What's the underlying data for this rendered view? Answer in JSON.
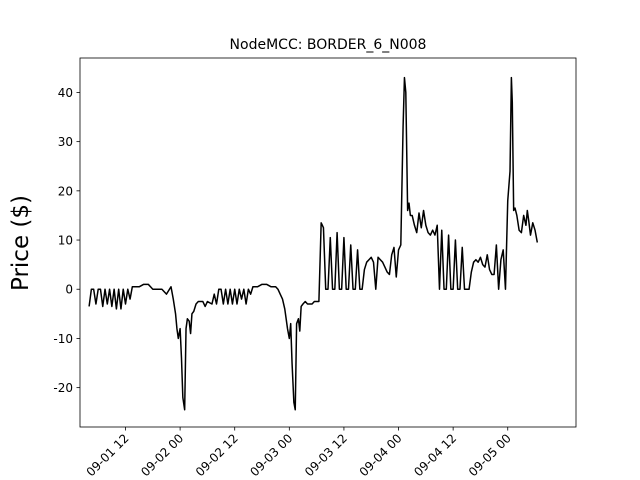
{
  "chart_data": {
    "type": "line",
    "title": "NodeMCC: BORDER_6_N008",
    "xlabel": "",
    "ylabel": "Price ($)",
    "x_unit": "hours",
    "xlim": [
      "09-01 02:00",
      "09-05 15:00"
    ],
    "ylim": [
      -28,
      47
    ],
    "yticks": [
      -20,
      -10,
      0,
      10,
      20,
      30,
      40
    ],
    "xticks": [
      {
        "label": "09-01 12",
        "hour": 12
      },
      {
        "label": "09-02 00",
        "hour": 24
      },
      {
        "label": "09-02 12",
        "hour": 36
      },
      {
        "label": "09-03 00",
        "hour": 48
      },
      {
        "label": "09-03 12",
        "hour": 60
      },
      {
        "label": "09-04 00",
        "hour": 72
      },
      {
        "label": "09-04 12",
        "hour": 84
      },
      {
        "label": "09-05 00",
        "hour": 96
      }
    ],
    "grid": false,
    "legend": "none",
    "series": [
      {
        "color": "#000000",
        "points": [
          [
            4.0,
            -3.5
          ],
          [
            4.5,
            0.0
          ],
          [
            5.0,
            0.0
          ],
          [
            5.5,
            -3.0
          ],
          [
            6.0,
            0.0
          ],
          [
            6.5,
            0.0
          ],
          [
            7.0,
            -3.5
          ],
          [
            7.5,
            0.0
          ],
          [
            8.0,
            -3.0
          ],
          [
            8.5,
            0.0
          ],
          [
            9.0,
            -3.5
          ],
          [
            9.5,
            0.0
          ],
          [
            10.0,
            -4.0
          ],
          [
            10.5,
            0.0
          ],
          [
            11.0,
            -4.0
          ],
          [
            11.5,
            0.0
          ],
          [
            12.0,
            -3.0
          ],
          [
            12.5,
            0.0
          ],
          [
            13.0,
            -2.0
          ],
          [
            13.5,
            0.5
          ],
          [
            14.0,
            0.5
          ],
          [
            15.0,
            0.5
          ],
          [
            16.0,
            1.0
          ],
          [
            17.0,
            1.0
          ],
          [
            17.5,
            0.5
          ],
          [
            18.0,
            0.0
          ],
          [
            19.0,
            0.0
          ],
          [
            20.0,
            0.0
          ],
          [
            21.0,
            -1.0
          ],
          [
            22.0,
            0.5
          ],
          [
            22.5,
            -2.0
          ],
          [
            23.0,
            -5.0
          ],
          [
            23.3,
            -8.0
          ],
          [
            23.6,
            -10.0
          ],
          [
            24.0,
            -8.0
          ],
          [
            24.3,
            -14.0
          ],
          [
            24.6,
            -22.0
          ],
          [
            25.0,
            -24.5
          ],
          [
            25.3,
            -8.0
          ],
          [
            25.6,
            -6.0
          ],
          [
            26.0,
            -6.5
          ],
          [
            26.3,
            -9.0
          ],
          [
            26.6,
            -5.0
          ],
          [
            27.0,
            -4.5
          ],
          [
            27.5,
            -3.0
          ],
          [
            28.0,
            -2.5
          ],
          [
            29.0,
            -2.5
          ],
          [
            29.5,
            -3.5
          ],
          [
            30.0,
            -2.5
          ],
          [
            31.0,
            -3.0
          ],
          [
            31.5,
            -1.0
          ],
          [
            32.0,
            -3.0
          ],
          [
            32.5,
            0.0
          ],
          [
            33.0,
            0.0
          ],
          [
            33.5,
            -3.0
          ],
          [
            34.0,
            0.0
          ],
          [
            34.5,
            -3.0
          ],
          [
            35.0,
            0.0
          ],
          [
            35.5,
            -3.0
          ],
          [
            36.0,
            0.0
          ],
          [
            36.5,
            -3.0
          ],
          [
            37.0,
            0.0
          ],
          [
            37.5,
            -2.0
          ],
          [
            38.0,
            0.0
          ],
          [
            38.5,
            -3.0
          ],
          [
            39.0,
            0.0
          ],
          [
            39.5,
            -1.0
          ],
          [
            40.0,
            0.5
          ],
          [
            41.0,
            0.5
          ],
          [
            42.0,
            1.0
          ],
          [
            43.0,
            1.0
          ],
          [
            44.0,
            0.5
          ],
          [
            45.0,
            0.5
          ],
          [
            45.5,
            0.0
          ],
          [
            46.0,
            -1.0
          ],
          [
            46.5,
            -2.0
          ],
          [
            47.0,
            -4.0
          ],
          [
            47.3,
            -6.0
          ],
          [
            47.6,
            -8.0
          ],
          [
            48.0,
            -10.0
          ],
          [
            48.3,
            -7.0
          ],
          [
            48.6,
            -15.0
          ],
          [
            49.0,
            -23.0
          ],
          [
            49.3,
            -24.5
          ],
          [
            49.6,
            -7.0
          ],
          [
            50.0,
            -6.0
          ],
          [
            50.3,
            -8.5
          ],
          [
            50.6,
            -3.5
          ],
          [
            51.0,
            -3.0
          ],
          [
            51.5,
            -2.5
          ],
          [
            52.0,
            -3.0
          ],
          [
            53.0,
            -3.0
          ],
          [
            53.5,
            -2.5
          ],
          [
            54.0,
            -2.5
          ],
          [
            54.5,
            -2.5
          ],
          [
            55.0,
            13.5
          ],
          [
            55.5,
            12.5
          ],
          [
            56.0,
            0.0
          ],
          [
            56.5,
            0.0
          ],
          [
            57.0,
            10.5
          ],
          [
            57.5,
            0.0
          ],
          [
            58.0,
            0.0
          ],
          [
            58.5,
            11.5
          ],
          [
            59.0,
            0.0
          ],
          [
            59.5,
            0.0
          ],
          [
            60.0,
            10.5
          ],
          [
            60.5,
            0.0
          ],
          [
            61.0,
            0.0
          ],
          [
            61.5,
            9.0
          ],
          [
            62.0,
            0.0
          ],
          [
            62.5,
            0.0
          ],
          [
            63.0,
            8.0
          ],
          [
            63.5,
            0.0
          ],
          [
            64.0,
            0.0
          ],
          [
            64.5,
            4.0
          ],
          [
            65.0,
            5.5
          ],
          [
            65.5,
            6.0
          ],
          [
            66.0,
            6.5
          ],
          [
            66.5,
            5.5
          ],
          [
            67.0,
            0.0
          ],
          [
            67.5,
            6.5
          ],
          [
            68.0,
            6.0
          ],
          [
            68.5,
            5.5
          ],
          [
            69.0,
            4.5
          ],
          [
            69.5,
            3.5
          ],
          [
            70.0,
            3.0
          ],
          [
            70.5,
            7.0
          ],
          [
            71.0,
            8.5
          ],
          [
            71.5,
            2.5
          ],
          [
            72.0,
            8.0
          ],
          [
            72.5,
            9.0
          ],
          [
            73.0,
            33.0
          ],
          [
            73.3,
            43.0
          ],
          [
            73.6,
            40.0
          ],
          [
            74.0,
            16.0
          ],
          [
            74.3,
            17.5
          ],
          [
            74.6,
            15.0
          ],
          [
            75.0,
            15.0
          ],
          [
            75.5,
            13.0
          ],
          [
            76.0,
            11.5
          ],
          [
            76.5,
            15.5
          ],
          [
            77.0,
            12.5
          ],
          [
            77.5,
            16.0
          ],
          [
            78.0,
            13.0
          ],
          [
            78.5,
            11.5
          ],
          [
            79.0,
            11.0
          ],
          [
            79.5,
            12.0
          ],
          [
            80.0,
            11.0
          ],
          [
            80.5,
            13.0
          ],
          [
            81.0,
            0.0
          ],
          [
            81.5,
            12.0
          ],
          [
            82.0,
            0.0
          ],
          [
            82.5,
            0.0
          ],
          [
            83.0,
            11.0
          ],
          [
            83.5,
            0.0
          ],
          [
            84.0,
            0.0
          ],
          [
            84.5,
            10.0
          ],
          [
            85.0,
            0.0
          ],
          [
            85.5,
            0.0
          ],
          [
            86.0,
            8.5
          ],
          [
            86.5,
            0.0
          ],
          [
            87.0,
            0.0
          ],
          [
            87.5,
            0.0
          ],
          [
            88.0,
            3.5
          ],
          [
            88.5,
            5.5
          ],
          [
            89.0,
            6.0
          ],
          [
            89.5,
            5.5
          ],
          [
            90.0,
            6.5
          ],
          [
            90.5,
            5.0
          ],
          [
            91.0,
            4.5
          ],
          [
            91.5,
            7.0
          ],
          [
            92.0,
            4.0
          ],
          [
            92.5,
            3.0
          ],
          [
            93.0,
            3.0
          ],
          [
            93.5,
            9.0
          ],
          [
            94.0,
            0.0
          ],
          [
            94.5,
            6.0
          ],
          [
            95.0,
            8.0
          ],
          [
            95.5,
            0.0
          ],
          [
            96.0,
            18.0
          ],
          [
            96.5,
            24.0
          ],
          [
            96.8,
            43.0
          ],
          [
            97.0,
            38.0
          ],
          [
            97.3,
            16.0
          ],
          [
            97.6,
            16.5
          ],
          [
            98.0,
            15.0
          ],
          [
            98.5,
            12.0
          ],
          [
            99.0,
            11.5
          ],
          [
            99.5,
            15.0
          ],
          [
            100.0,
            13.0
          ],
          [
            100.3,
            16.0
          ],
          [
            100.6,
            14.0
          ],
          [
            101.0,
            11.0
          ],
          [
            101.5,
            13.5
          ],
          [
            102.0,
            12.0
          ],
          [
            102.5,
            9.5
          ]
        ]
      }
    ]
  }
}
